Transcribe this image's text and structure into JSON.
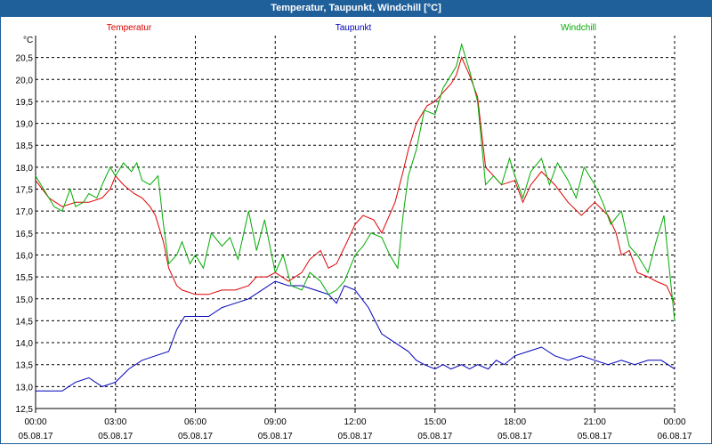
{
  "window_title": "Temperatur, Taupunkt, Windchill [°C]",
  "chart_data": {
    "type": "line",
    "title": "Temperatur, Taupunkt, Windchill [°C]",
    "ylabel": "°C",
    "ylim": [
      12.5,
      21.0
    ],
    "yticks": [
      "13,0",
      "13,5",
      "14,0",
      "14,5",
      "15,0",
      "15,5",
      "16,0",
      "16,5",
      "17,0",
      "17,5",
      "18,0",
      "18,5",
      "19,0",
      "19,5",
      "20,0",
      "20,5"
    ],
    "ytick_values": [
      13.0,
      13.5,
      14.0,
      14.5,
      15.0,
      15.5,
      16.0,
      16.5,
      17.0,
      17.5,
      18.0,
      18.5,
      19.0,
      19.5,
      20.0,
      20.5
    ],
    "y_bottom_label": "12,5",
    "xlim_hours": [
      0,
      24
    ],
    "xtick_hours": [
      0,
      3,
      6,
      9,
      12,
      15,
      18,
      21,
      24
    ],
    "xtick_times": [
      "00:00",
      "03:00",
      "06:00",
      "09:00",
      "12:00",
      "15:00",
      "18:00",
      "21:00",
      "00:00"
    ],
    "xtick_dates": [
      "05.08.17",
      "05.08.17",
      "05.08.17",
      "05.08.17",
      "05.08.17",
      "05.08.17",
      "05.08.17",
      "05.08.17",
      "06.08.17"
    ],
    "grid": true,
    "series": [
      {
        "name": "Temperatur",
        "color": "#dd0000",
        "x": [
          0,
          0.5,
          1,
          1.5,
          2,
          2.5,
          2.8,
          3,
          3.3,
          3.7,
          4,
          4.3,
          4.5,
          4.8,
          5,
          5.3,
          5.5,
          6,
          6.5,
          7,
          7.5,
          8,
          8.3,
          8.7,
          9,
          9.5,
          10,
          10.3,
          10.7,
          11,
          11.3,
          11.7,
          12,
          12.3,
          12.7,
          13,
          13.5,
          13.8,
          14,
          14.3,
          14.7,
          15,
          15.3,
          15.6,
          15.8,
          16,
          16.3,
          16.6,
          16.9,
          17.2,
          17.5,
          18,
          18.3,
          18.6,
          19,
          19.5,
          20,
          20.5,
          21,
          21.5,
          21.8,
          22,
          22.3,
          22.6,
          23,
          23.3,
          23.7,
          24
        ],
        "values": [
          17.7,
          17.3,
          17.1,
          17.2,
          17.2,
          17.3,
          17.5,
          17.8,
          17.6,
          17.4,
          17.3,
          17.1,
          16.9,
          16.3,
          15.7,
          15.3,
          15.2,
          15.1,
          15.1,
          15.2,
          15.2,
          15.3,
          15.5,
          15.5,
          15.6,
          15.4,
          15.6,
          15.9,
          16.1,
          15.7,
          15.8,
          16.3,
          16.7,
          16.9,
          16.8,
          16.5,
          17.2,
          17.9,
          18.4,
          19.0,
          19.4,
          19.5,
          19.7,
          19.9,
          20.1,
          20.5,
          20.1,
          19.6,
          18.0,
          17.8,
          17.6,
          17.7,
          17.2,
          17.6,
          17.9,
          17.6,
          17.2,
          16.9,
          17.2,
          16.9,
          16.5,
          16.0,
          16.1,
          15.6,
          15.5,
          15.4,
          15.3,
          14.9
        ]
      },
      {
        "name": "Taupunkt",
        "color": "#0000bb",
        "x": [
          0,
          0.5,
          1,
          1.5,
          2,
          2.5,
          3,
          3.5,
          4,
          4.5,
          5,
          5.3,
          5.6,
          6,
          6.5,
          7,
          7.5,
          8,
          8.5,
          9,
          9.5,
          10,
          10.5,
          11,
          11.3,
          11.6,
          12,
          12.5,
          13,
          13.5,
          14,
          14.3,
          14.6,
          15,
          15.3,
          15.6,
          16,
          16.3,
          16.6,
          17,
          17.3,
          17.6,
          18,
          18.5,
          19,
          19.5,
          20,
          20.5,
          21,
          21.5,
          22,
          22.5,
          23,
          23.5,
          24
        ],
        "values": [
          12.9,
          12.9,
          12.9,
          13.1,
          13.2,
          13.0,
          13.1,
          13.4,
          13.6,
          13.7,
          13.8,
          14.3,
          14.6,
          14.6,
          14.6,
          14.8,
          14.9,
          15.0,
          15.2,
          15.4,
          15.3,
          15.3,
          15.2,
          15.1,
          14.9,
          15.3,
          15.2,
          14.8,
          14.2,
          14.0,
          13.8,
          13.6,
          13.5,
          13.4,
          13.5,
          13.4,
          13.5,
          13.4,
          13.5,
          13.4,
          13.6,
          13.5,
          13.7,
          13.8,
          13.9,
          13.7,
          13.6,
          13.7,
          13.6,
          13.5,
          13.6,
          13.5,
          13.6,
          13.6,
          13.4
        ]
      },
      {
        "name": "Windchill",
        "color": "#00aa00",
        "x": [
          0,
          0.3,
          0.7,
          1,
          1.3,
          1.5,
          1.8,
          2,
          2.3,
          2.5,
          2.8,
          3,
          3.3,
          3.6,
          3.8,
          4,
          4.3,
          4.6,
          4.8,
          5,
          5.3,
          5.5,
          5.8,
          6,
          6.3,
          6.6,
          7,
          7.3,
          7.6,
          8,
          8.3,
          8.6,
          9,
          9.3,
          9.6,
          10,
          10.3,
          10.7,
          11,
          11.3,
          11.6,
          12,
          12.3,
          12.6,
          13,
          13.3,
          13.6,
          13.8,
          14,
          14.3,
          14.6,
          15,
          15.3,
          15.6,
          15.8,
          16,
          16.3,
          16.6,
          16.9,
          17.2,
          17.5,
          17.8,
          18,
          18.3,
          18.6,
          19,
          19.3,
          19.6,
          20,
          20.3,
          20.6,
          21,
          21.3,
          21.6,
          22,
          22.3,
          22.6,
          23,
          23.3,
          23.6,
          24
        ],
        "values": [
          17.8,
          17.5,
          17.1,
          17.0,
          17.5,
          17.1,
          17.2,
          17.4,
          17.3,
          17.6,
          18.0,
          17.8,
          18.1,
          17.9,
          18.1,
          17.7,
          17.6,
          17.8,
          16.7,
          15.8,
          16.0,
          16.3,
          15.8,
          16.0,
          15.7,
          16.5,
          16.2,
          16.4,
          15.9,
          17.0,
          16.1,
          16.8,
          15.6,
          16.0,
          15.3,
          15.2,
          15.6,
          15.4,
          15.1,
          15.2,
          15.4,
          16.0,
          16.2,
          16.5,
          16.4,
          16.0,
          15.7,
          16.9,
          17.8,
          18.4,
          19.3,
          19.2,
          19.8,
          20.1,
          20.3,
          20.8,
          20.2,
          19.5,
          17.6,
          17.8,
          17.6,
          18.2,
          17.8,
          17.3,
          17.9,
          18.2,
          17.6,
          18.1,
          17.7,
          17.3,
          18.0,
          17.6,
          17.2,
          16.7,
          17.0,
          16.2,
          16.0,
          15.6,
          16.3,
          16.9,
          14.5
        ]
      }
    ]
  }
}
